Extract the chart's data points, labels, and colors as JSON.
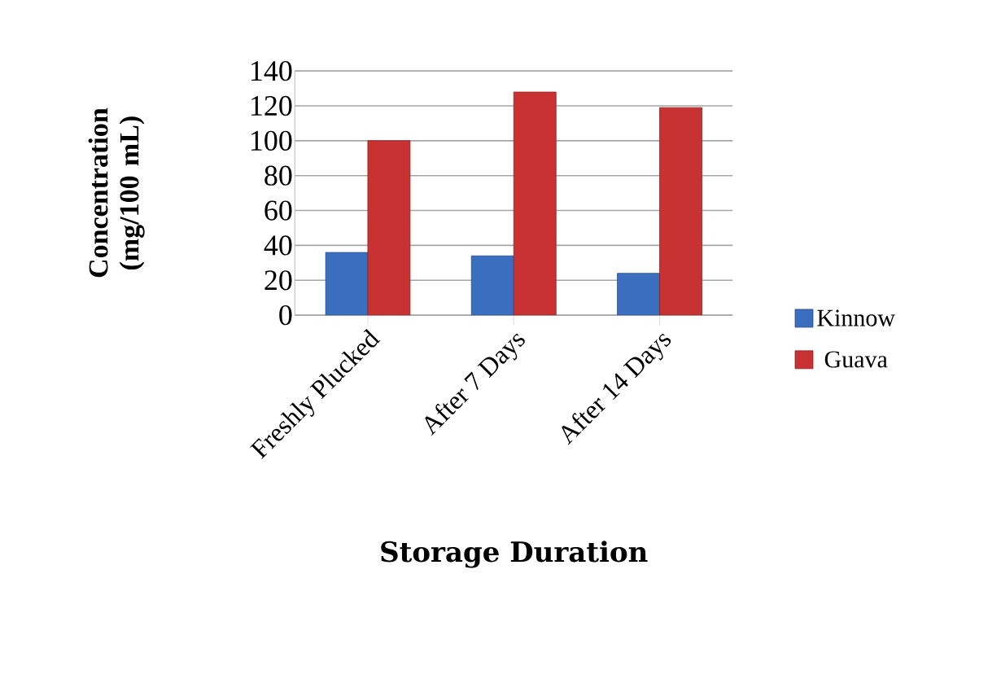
{
  "chart_data": {
    "type": "bar",
    "xlabel": "Storage Duration",
    "ylabel": "Concentration (mg/100 mL)",
    "categories": [
      "Freshly Plucked",
      "After 7 Days",
      "After 14 Days"
    ],
    "series": [
      {
        "name": "Kinnow",
        "color": "#3a6fc0",
        "values": [
          36,
          34,
          24
        ]
      },
      {
        "name": "Guava",
        "color": "#c83232",
        "values": [
          100,
          128,
          119
        ]
      }
    ],
    "ylim": [
      0,
      140
    ],
    "yticks": [
      0,
      20,
      40,
      60,
      80,
      100,
      120,
      140
    ],
    "grid": "y",
    "legend": "right"
  }
}
